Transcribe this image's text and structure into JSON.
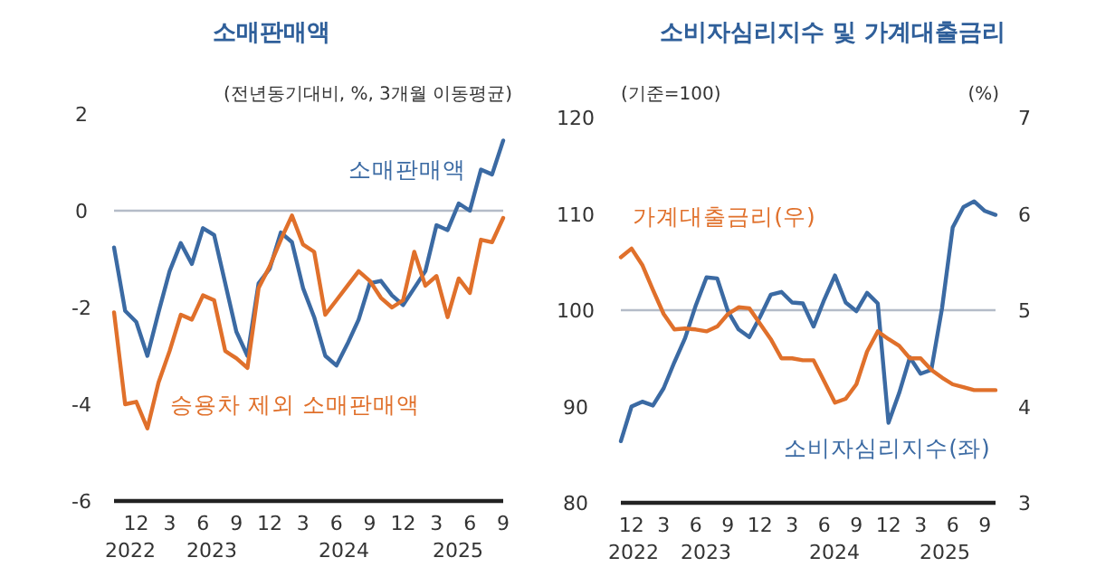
{
  "chart_data": [
    {
      "type": "line",
      "title": "소매판매액",
      "ylabel": "(전년동기대비, %, 3개월 이동평균)",
      "x": [
        "2022-10",
        "2022-11",
        "2022-12",
        "2023-01",
        "2023-02",
        "2023-03",
        "2023-04",
        "2023-05",
        "2023-06",
        "2023-07",
        "2023-08",
        "2023-09",
        "2023-10",
        "2023-11",
        "2023-12",
        "2024-01",
        "2024-02",
        "2024-03",
        "2024-04",
        "2024-05",
        "2024-06",
        "2024-07",
        "2024-08",
        "2024-09",
        "2024-10",
        "2024-11",
        "2024-12",
        "2025-01",
        "2025-02",
        "2025-03",
        "2025-04",
        "2025-05",
        "2025-06",
        "2025-07",
        "2025-08",
        "2025-09"
      ],
      "series": [
        {
          "name": "소매판매액",
          "color": "#3b6aa3",
          "values": [
            -0.76,
            -2.07,
            -2.3,
            -3.0,
            -2.1,
            -1.25,
            -0.67,
            -1.1,
            -0.36,
            -0.5,
            -1.5,
            -2.5,
            -3.0,
            -1.5,
            -1.2,
            -0.45,
            -0.65,
            -1.6,
            -2.2,
            -3.0,
            -3.2,
            -2.75,
            -2.25,
            -1.5,
            -1.45,
            -1.75,
            -1.95,
            -1.6,
            -1.25,
            -0.3,
            -0.4,
            0.15,
            0.0,
            0.85,
            0.75,
            1.45
          ]
        },
        {
          "name": "승용차 제외 소매판매액",
          "color": "#e0702b",
          "values": [
            -2.1,
            -4.0,
            -3.95,
            -4.5,
            -3.55,
            -2.9,
            -2.15,
            -2.25,
            -1.75,
            -1.85,
            -2.9,
            -3.05,
            -3.25,
            -1.6,
            -1.15,
            -0.6,
            -0.1,
            -0.7,
            -0.85,
            -2.15,
            -1.85,
            -1.55,
            -1.25,
            -1.45,
            -1.8,
            -2.0,
            -1.85,
            -0.85,
            -1.55,
            -1.35,
            -2.2,
            -1.4,
            -1.7,
            -0.6,
            -0.65,
            -0.15
          ]
        }
      ],
      "xlim": [
        "2022-10",
        "2025-09"
      ],
      "xticks": [
        {
          "value": "2022-12",
          "label": "12"
        },
        {
          "value": "2023-03",
          "label": "3"
        },
        {
          "value": "2023-06",
          "label": "6"
        },
        {
          "value": "2023-09",
          "label": "9"
        },
        {
          "value": "2023-12",
          "label": "12"
        },
        {
          "value": "2024-03",
          "label": "3"
        },
        {
          "value": "2024-06",
          "label": "6"
        },
        {
          "value": "2024-09",
          "label": "9"
        },
        {
          "value": "2024-12",
          "label": "12"
        },
        {
          "value": "2025-03",
          "label": "3"
        },
        {
          "value": "2025-06",
          "label": "6"
        },
        {
          "value": "2025-09",
          "label": "9"
        }
      ],
      "ylim": [
        -6,
        2
      ],
      "yticks": [
        -6,
        -4,
        -2,
        0,
        2
      ],
      "ref_lines": [
        {
          "axis": "y",
          "value": 0,
          "color": "#b4bcc8"
        }
      ],
      "annotations": [
        "2022",
        "2023",
        "2024",
        "2025"
      ],
      "grid": false
    },
    {
      "type": "line",
      "title": "소비자심리지수 및 가계대출금리",
      "ylabel": "(기준=100)",
      "y2label": "(%)",
      "x": [
        "2022-11",
        "2022-12",
        "2023-01",
        "2023-02",
        "2023-03",
        "2023-04",
        "2023-05",
        "2023-06",
        "2023-07",
        "2023-08",
        "2023-09",
        "2023-10",
        "2023-11",
        "2023-12",
        "2024-01",
        "2024-02",
        "2024-03",
        "2024-04",
        "2024-05",
        "2024-06",
        "2024-07",
        "2024-08",
        "2024-09",
        "2024-10",
        "2024-11",
        "2024-12",
        "2025-01",
        "2025-02",
        "2025-03",
        "2025-04",
        "2025-05",
        "2025-06",
        "2025-07",
        "2025-08",
        "2025-09",
        "2025-10"
      ],
      "series": [
        {
          "name": "소비자심리지수(좌)",
          "color": "#3b6aa3",
          "values": [
            86.4,
            90.0,
            90.5,
            90.1,
            91.9,
            94.6,
            97.1,
            100.5,
            103.4,
            103.3,
            99.9,
            98.0,
            97.2,
            99.3,
            101.6,
            101.9,
            100.8,
            100.7,
            98.3,
            101.1,
            103.6,
            100.8,
            99.9,
            101.8,
            100.7,
            88.3,
            91.4,
            95.1,
            93.4,
            93.8,
            100.2,
            108.6,
            110.7,
            111.3,
            110.3,
            109.9
          ]
        },
        {
          "name": "가계대출금리(우)",
          "color": "#e0702b",
          "axis": "y2",
          "values": [
            5.55,
            5.64,
            5.47,
            5.21,
            4.96,
            4.8,
            4.81,
            4.8,
            4.78,
            4.83,
            4.96,
            5.03,
            5.02,
            4.86,
            4.7,
            4.5,
            4.5,
            4.48,
            4.48,
            4.26,
            4.04,
            4.08,
            4.23,
            4.57,
            4.78,
            4.7,
            4.63,
            4.5,
            4.5,
            4.38,
            4.3,
            4.23,
            4.2,
            4.17,
            4.17,
            4.17
          ]
        }
      ],
      "xlim": [
        "2022-11",
        "2025-10"
      ],
      "xticks": [
        {
          "value": "2022-12",
          "label": "12"
        },
        {
          "value": "2023-03",
          "label": "3"
        },
        {
          "value": "2023-06",
          "label": "6"
        },
        {
          "value": "2023-09",
          "label": "9"
        },
        {
          "value": "2023-12",
          "label": "12"
        },
        {
          "value": "2024-03",
          "label": "3"
        },
        {
          "value": "2024-06",
          "label": "6"
        },
        {
          "value": "2024-09",
          "label": "9"
        },
        {
          "value": "2024-12",
          "label": "12"
        },
        {
          "value": "2025-03",
          "label": "3"
        },
        {
          "value": "2025-06",
          "label": "6"
        },
        {
          "value": "2025-09",
          "label": "9"
        }
      ],
      "ylim": [
        80,
        120
      ],
      "yticks": [
        80,
        90,
        100,
        110,
        120
      ],
      "y2lim": [
        3,
        7
      ],
      "y2ticks": [
        3,
        4,
        5,
        6,
        7
      ],
      "ref_lines": [
        {
          "axis": "y",
          "value": 100,
          "color": "#b4bcc8"
        }
      ],
      "annotations": [
        "2022",
        "2023",
        "2024",
        "2025"
      ],
      "grid": false
    }
  ]
}
